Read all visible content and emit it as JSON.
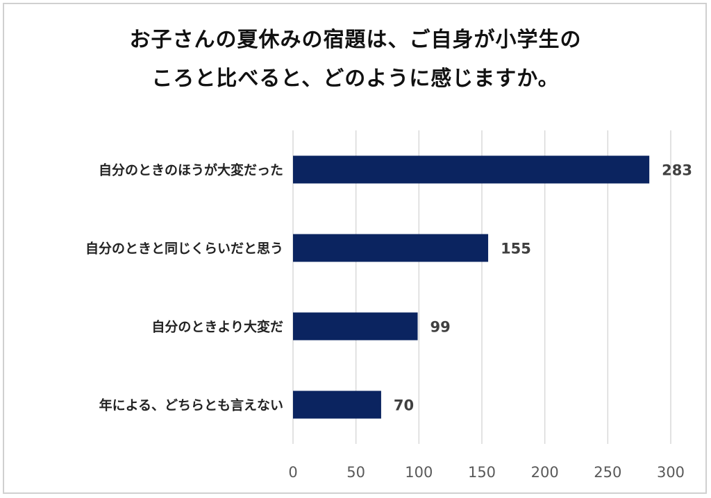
{
  "chart_data": {
    "type": "bar",
    "orientation": "horizontal",
    "title_lines": [
      "お子さんの夏休みの宿題は、ご自身が小学生の",
      "ころと比べると、どのように感じますか。"
    ],
    "categories": [
      "自分のときのほうが大変だった",
      "自分のときと同じくらいだと思う",
      "自分のときより大変だ",
      "年による、どちらとも言えない"
    ],
    "values": [
      283,
      155,
      99,
      70
    ],
    "xlim": [
      0,
      300
    ],
    "xticks": [
      0,
      50,
      100,
      150,
      200,
      250,
      300
    ],
    "grid": true,
    "legend": "none",
    "bar_color": "#0b2460",
    "grid_color": "#d9d9d9"
  }
}
